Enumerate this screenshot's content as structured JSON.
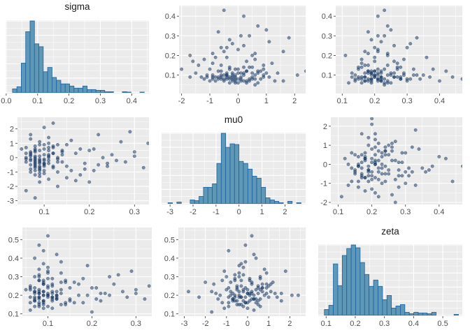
{
  "chart_data": {
    "type": "scatter-matrix",
    "variables": [
      "sigma",
      "mu0",
      "zeta"
    ],
    "colors": {
      "panel_background": "#ebebeb",
      "grid": "#ffffff",
      "point_fill": "#0b2f5e",
      "bar_fill": "#5f97b6",
      "bar_stroke": "#1b62a0",
      "tick_text": "#4d4d4d"
    },
    "point_columns": [
      "sigma",
      "mu0",
      "zeta"
    ],
    "points": [
      [
        0.08,
        -0.4,
        0.19
      ],
      [
        0.07,
        0.2,
        0.22
      ],
      [
        0.09,
        -0.7,
        0.17
      ],
      [
        0.11,
        0.5,
        0.25
      ],
      [
        0.06,
        -0.1,
        0.16
      ],
      [
        0.1,
        0.9,
        0.21
      ],
      [
        0.08,
        -1.2,
        0.28
      ],
      [
        0.12,
        0.3,
        0.18
      ],
      [
        0.07,
        -0.5,
        0.24
      ],
      [
        0.09,
        0.1,
        0.2
      ],
      [
        0.13,
        -0.3,
        0.15
      ],
      [
        0.08,
        0.6,
        0.3
      ],
      [
        0.1,
        -0.9,
        0.19
      ],
      [
        0.06,
        0.0,
        0.23
      ],
      [
        0.15,
        -0.6,
        0.17
      ],
      [
        0.09,
        1.1,
        0.26
      ],
      [
        0.07,
        -0.2,
        0.14
      ],
      [
        0.11,
        -1.5,
        0.21
      ],
      [
        0.08,
        0.4,
        0.18
      ],
      [
        0.1,
        -0.4,
        0.32
      ],
      [
        0.12,
        0.8,
        0.2
      ],
      [
        0.09,
        -0.1,
        0.16
      ],
      [
        0.07,
        -0.8,
        0.22
      ],
      [
        0.14,
        0.2,
        0.27
      ],
      [
        0.08,
        -0.3,
        0.19
      ],
      [
        0.11,
        0.0,
        0.13
      ],
      [
        0.06,
        0.7,
        0.24
      ],
      [
        0.1,
        -0.6,
        0.29
      ],
      [
        0.09,
        0.5,
        0.17
      ],
      [
        0.13,
        -1.0,
        0.23
      ],
      [
        0.17,
        0.3,
        0.2
      ],
      [
        0.08,
        -0.5,
        0.15
      ],
      [
        0.07,
        1.3,
        0.21
      ],
      [
        0.1,
        -0.2,
        0.35
      ],
      [
        0.12,
        -0.7,
        0.18
      ],
      [
        0.09,
        0.9,
        0.26
      ],
      [
        0.11,
        -0.4,
        0.22
      ],
      [
        0.08,
        0.1,
        0.28
      ],
      [
        0.16,
        -0.9,
        0.16
      ],
      [
        0.07,
        -0.1,
        0.19
      ],
      [
        0.2,
        0.5,
        0.24
      ],
      [
        0.09,
        -1.3,
        0.2
      ],
      [
        0.1,
        0.6,
        0.14
      ],
      [
        0.08,
        -0.6,
        0.31
      ],
      [
        0.13,
        0.0,
        0.21
      ],
      [
        0.06,
        -0.3,
        0.25
      ],
      [
        0.22,
        -0.5,
        0.17
      ],
      [
        0.11,
        1.0,
        0.19
      ],
      [
        0.09,
        -0.8,
        0.27
      ],
      [
        0.14,
        0.4,
        0.16
      ],
      [
        0.08,
        -0.2,
        0.23
      ],
      [
        0.19,
        -0.8,
        0.2
      ],
      [
        0.07,
        0.3,
        0.18
      ],
      [
        0.1,
        -1.1,
        0.33
      ],
      [
        0.12,
        0.7,
        0.22
      ],
      [
        0.25,
        0.2,
        0.26
      ],
      [
        0.09,
        -0.4,
        0.15
      ],
      [
        0.15,
        0.9,
        0.24
      ],
      [
        0.08,
        -0.7,
        0.21
      ],
      [
        0.11,
        0.1,
        0.29
      ],
      [
        0.28,
        -0.3,
        0.19
      ],
      [
        0.07,
        1.6,
        0.17
      ],
      [
        0.13,
        -0.1,
        0.38
      ],
      [
        0.09,
        -1.7,
        0.22
      ],
      [
        0.21,
        0.6,
        0.18
      ],
      [
        0.1,
        -0.5,
        0.25
      ],
      [
        0.18,
        -1.2,
        0.16
      ],
      [
        0.08,
        0.8,
        0.34
      ],
      [
        0.24,
        -0.6,
        0.2
      ],
      [
        0.12,
        0.3,
        0.42
      ],
      [
        0.3,
        0.4,
        0.23
      ],
      [
        0.06,
        -2.3,
        0.19
      ],
      [
        0.16,
        1.2,
        0.27
      ],
      [
        0.09,
        -0.9,
        0.44
      ],
      [
        0.23,
        0.0,
        0.21
      ],
      [
        0.11,
        -0.2,
        0.17
      ],
      [
        0.35,
        0.7,
        0.24
      ],
      [
        0.07,
        -1.0,
        0.3
      ],
      [
        0.14,
        0.5,
        0.15
      ],
      [
        0.19,
        -0.4,
        0.36
      ],
      [
        0.27,
        1.1,
        0.22
      ],
      [
        0.1,
        2.1,
        0.2
      ],
      [
        0.32,
        -0.7,
        0.18
      ],
      [
        0.08,
        -0.1,
        0.47
      ],
      [
        0.17,
        -1.6,
        0.26
      ],
      [
        0.13,
        0.9,
        0.32
      ],
      [
        0.4,
        0.2,
        0.21
      ],
      [
        0.09,
        -0.6,
        0.28
      ],
      [
        0.21,
        -0.9,
        0.24
      ],
      [
        0.11,
        1.4,
        0.19
      ],
      [
        0.08,
        -2.8,
        0.22
      ],
      [
        0.12,
        2.4,
        0.2
      ],
      [
        0.26,
        -0.2,
        0.31
      ],
      [
        0.07,
        0.4,
        0.4
      ],
      [
        0.15,
        -1.4,
        0.18
      ],
      [
        0.1,
        0.2,
        0.52
      ],
      [
        0.33,
        1.0,
        0.25
      ],
      [
        0.18,
        0.6,
        0.29
      ],
      [
        0.09,
        -0.3,
        0.37
      ],
      [
        0.43,
        -0.5,
        0.23
      ],
      [
        0.13,
        -2.0,
        0.27
      ],
      [
        0.22,
        1.6,
        0.21
      ],
      [
        0.08,
        0.0,
        0.16
      ],
      [
        0.1,
        -0.4,
        0.2
      ],
      [
        0.11,
        0.2,
        0.18
      ],
      [
        0.09,
        -0.2,
        0.22
      ],
      [
        0.07,
        0.1,
        0.17
      ],
      [
        0.12,
        -0.6,
        0.19
      ],
      [
        0.08,
        0.5,
        0.21
      ],
      [
        0.1,
        -0.1,
        0.24
      ],
      [
        0.06,
        0.3,
        0.12
      ],
      [
        0.09,
        -1.1,
        0.13
      ],
      [
        0.11,
        0.7,
        0.26
      ],
      [
        0.14,
        -0.3,
        0.28
      ],
      [
        0.08,
        -0.9,
        0.14
      ],
      [
        0.3,
        0.1,
        0.21
      ],
      [
        0.29,
        1.8,
        0.33
      ],
      [
        0.2,
        -1.7,
        0.11
      ],
      [
        0.24,
        -0.4,
        0.3
      ],
      [
        0.05,
        0.6,
        0.23
      ]
    ],
    "panels": [
      {
        "row": 1,
        "col": 1,
        "type": "histogram",
        "title": "sigma",
        "variable": "sigma",
        "x": {
          "range": [
            -0.002,
            0.455
          ],
          "ticks": [
            "0.0",
            "0.1",
            "0.2",
            "0.3",
            "0.4"
          ]
        },
        "y": {
          "range": [
            -1.5,
            101
          ],
          "ticks": []
        },
        "bins": {
          "start": 0.02,
          "width": 0.014,
          "relative_heights": [
            5,
            8,
            41,
            85,
            100,
            68,
            64,
            29,
            35,
            21,
            17,
            12,
            12,
            9,
            6,
            6,
            9,
            4,
            4,
            3,
            3,
            1,
            1,
            0,
            0,
            1,
            0.5,
            0,
            0,
            0.5
          ]
        }
      },
      {
        "row": 1,
        "col": 2,
        "type": "scatter",
        "x_var": "mu0",
        "y_var": "sigma",
        "x": {
          "range": [
            -2.09,
            2.39
          ],
          "ticks": [
            "-2",
            "-1",
            "0",
            "1",
            "2"
          ]
        },
        "y": {
          "range": [
            0.006,
            0.454
          ],
          "ticks": [
            "0.1",
            "0.2",
            "0.3",
            "0.4"
          ]
        }
      },
      {
        "row": 1,
        "col": 3,
        "type": "scatter",
        "x_var": "zeta",
        "y_var": "sigma",
        "x": {
          "range": [
            0.08,
            0.47
          ],
          "ticks": [
            "0.1",
            "0.2",
            "0.3",
            "0.4"
          ]
        },
        "y": {
          "range": [
            0.006,
            0.454
          ],
          "ticks": [
            "0.1",
            "0.2",
            "0.3",
            "0.4"
          ]
        }
      },
      {
        "row": 2,
        "col": 1,
        "type": "scatter",
        "x_var": "sigma",
        "y_var": "mu0",
        "x": {
          "range": [
            0.041,
            0.332
          ],
          "ticks": [
            "0.1",
            "0.2",
            "0.3"
          ]
        },
        "y": {
          "range": [
            -3.26,
            2.81
          ],
          "ticks": [
            "-3",
            "-2",
            "-1",
            "0",
            "1",
            "2"
          ]
        }
      },
      {
        "row": 2,
        "col": 2,
        "type": "histogram",
        "title": "mu0",
        "variable": "mu0",
        "x": {
          "range": [
            -3.37,
            2.9
          ],
          "ticks": [
            "-3",
            "-2",
            "-1",
            "0",
            "1",
            "2"
          ]
        },
        "y": {
          "range": [
            -1.5,
            101
          ],
          "ticks": []
        },
        "bins": {
          "start": -3.09,
          "width": 0.193,
          "relative_heights": [
            1,
            0,
            2,
            0,
            0,
            5,
            4,
            10,
            23,
            23,
            28,
            57,
            100,
            80,
            85,
            84,
            60,
            57,
            49,
            39,
            36,
            23,
            8,
            5,
            3,
            1,
            0,
            3,
            0,
            1
          ]
        }
      },
      {
        "row": 2,
        "col": 3,
        "type": "scatter",
        "x_var": "zeta",
        "y_var": "mu0",
        "x": {
          "range": [
            0.078,
            0.469
          ],
          "ticks": [
            "0.1",
            "0.2",
            "0.3",
            "0.4"
          ]
        },
        "y": {
          "range": [
            -2.11,
            2.47
          ],
          "ticks": [
            "-2",
            "-1",
            "0",
            "1",
            "2"
          ]
        }
      },
      {
        "row": 3,
        "col": 1,
        "type": "scatter",
        "x_var": "sigma",
        "y_var": "zeta",
        "x": {
          "range": [
            0.042,
            0.336
          ],
          "ticks": [
            "0.1",
            "0.2",
            "0.3"
          ]
        },
        "y": {
          "range": [
            0.0876,
            0.565
          ],
          "ticks": [
            "0.1",
            "0.2",
            "0.3",
            "0.4",
            "0.5"
          ]
        }
      },
      {
        "row": 3,
        "col": 2,
        "type": "scatter",
        "x_var": "mu0",
        "y_var": "zeta",
        "x": {
          "range": [
            -3.28,
            2.75
          ],
          "ticks": [
            "-3",
            "-2",
            "-1",
            "0",
            "1",
            "2"
          ]
        },
        "y": {
          "range": [
            0.0876,
            0.565
          ],
          "ticks": [
            "0.1",
            "0.2",
            "0.3",
            "0.4",
            "0.5"
          ]
        }
      },
      {
        "row": 3,
        "col": 3,
        "type": "histogram",
        "title": "zeta",
        "variable": "zeta",
        "x": {
          "range": [
            0.073,
            0.567
          ],
          "ticks": [
            "0.1",
            "0.2",
            "0.3",
            "0.4",
            "0.5"
          ]
        },
        "y": {
          "range": [
            -1.5,
            101
          ],
          "ticks": []
        },
        "bins": {
          "start": 0.094,
          "width": 0.01533,
          "relative_heights": [
            8,
            14,
            73,
            42,
            85,
            95,
            100,
            96,
            75,
            58,
            41,
            50,
            41,
            22,
            28,
            10,
            13,
            15,
            4,
            2,
            4,
            3,
            3,
            2,
            4,
            0,
            0,
            0,
            0,
            1
          ]
        }
      }
    ]
  }
}
